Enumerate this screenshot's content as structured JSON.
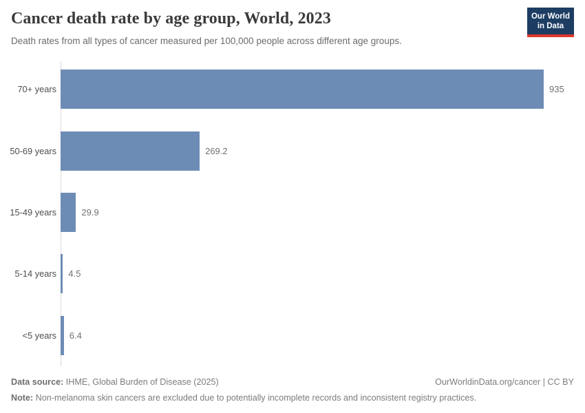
{
  "header": {
    "title": "Cancer death rate by age group, World, 2023",
    "subtitle": "Death rates from all types of cancer measured per 100,000 people across different age groups.",
    "logo": {
      "line1": "Our World",
      "line2": "in Data"
    }
  },
  "chart_data": {
    "type": "bar",
    "orientation": "horizontal",
    "title": "Cancer death rate by age group, World, 2023",
    "xlabel": "",
    "ylabel": "",
    "categories": [
      "70+ years",
      "50-69 years",
      "15-49 years",
      "5-14 years",
      "<5 years"
    ],
    "values": [
      935,
      269.2,
      29.9,
      4.5,
      6.4
    ],
    "value_labels": [
      "935",
      "269.2",
      "29.9",
      "4.5",
      "6.4"
    ],
    "xlim": [
      0,
      935
    ],
    "grid": false,
    "legend": false
  },
  "footer": {
    "source_label": "Data source:",
    "source_text": " IHME, Global Burden of Disease (2025)",
    "link_text": "OurWorldinData.org/cancer | CC BY",
    "note_label": "Note:",
    "note_text": " Non-melanoma skin cancers are excluded due to potentially incomplete records and inconsistent registry practices."
  },
  "colors": {
    "bar": "#6d8cb5",
    "axis_line": "#d8d8d8",
    "logo_bg": "#1d3d63",
    "logo_stripe": "#e0362c"
  }
}
